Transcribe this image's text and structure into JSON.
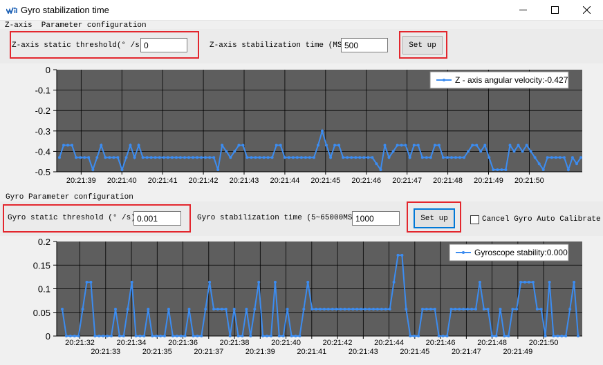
{
  "window": {
    "title": "Gyro stabilization time",
    "app_icon": "wit-logo-icon",
    "controls": [
      "minimize-icon",
      "maximize-icon",
      "close-icon"
    ]
  },
  "z_axis": {
    "section_label": "Z-axis  Parameter configuration",
    "threshold_label": "Z-axis static threshold(° /s):",
    "threshold_value": "0",
    "time_label": "Z-axis stabilization time (MS):",
    "time_value": "500",
    "setup_label": "Set up"
  },
  "gyro": {
    "section_label": "Gyro Parameter configuration",
    "threshold_label": "Gyro static threshold (° /s):",
    "threshold_value": "0.001",
    "time_label": "Gyro stabilization time (5~65000MS):",
    "time_value": "1000",
    "setup_label": "Set up",
    "cancel_calibrate_label": "Cancel Gyro Auto Calibrate",
    "cancel_calibrate_checked": false
  },
  "chart_data": [
    {
      "type": "line",
      "legend": "Z - axis angular velocity:-0.427",
      "legend_position": "top-right",
      "series_color": "#3c8cf0",
      "plot_bg": "#5e5e5e",
      "grid": true,
      "ylim": [
        -0.5,
        0
      ],
      "yticks": [
        "0",
        "-0.1",
        "-0.2",
        "-0.3",
        "-0.4",
        "-0.5"
      ],
      "xticks": [
        "20:21:39",
        "20:21:40",
        "20:21:41",
        "20:21:42",
        "20:21:43",
        "20:21:44",
        "20:21:45",
        "20:21:46",
        "20:21:47",
        "20:21:48",
        "20:21:49",
        "20:21:50"
      ],
      "x_range": [
        38.4,
        51.3
      ],
      "x_first_tick": 39,
      "values": [
        -0.43,
        -0.37,
        -0.37,
        -0.37,
        -0.43,
        -0.43,
        -0.43,
        -0.43,
        -0.49,
        -0.43,
        -0.37,
        -0.43,
        -0.43,
        -0.43,
        -0.43,
        -0.49,
        -0.43,
        -0.37,
        -0.43,
        -0.37,
        -0.43,
        -0.43,
        -0.43,
        -0.43,
        -0.43,
        -0.43,
        -0.43,
        -0.43,
        -0.43,
        -0.43,
        -0.43,
        -0.43,
        -0.43,
        -0.43,
        -0.43,
        -0.43,
        -0.43,
        -0.43,
        -0.49,
        -0.37,
        -0.4,
        -0.43,
        -0.4,
        -0.37,
        -0.37,
        -0.43,
        -0.43,
        -0.43,
        -0.43,
        -0.43,
        -0.43,
        -0.43,
        -0.37,
        -0.37,
        -0.43,
        -0.43,
        -0.43,
        -0.43,
        -0.43,
        -0.43,
        -0.43,
        -0.43,
        -0.37,
        -0.3,
        -0.37,
        -0.43,
        -0.37,
        -0.37,
        -0.43,
        -0.43,
        -0.43,
        -0.43,
        -0.43,
        -0.43,
        -0.43,
        -0.43,
        -0.46,
        -0.49,
        -0.37,
        -0.43,
        -0.4,
        -0.37,
        -0.37,
        -0.37,
        -0.43,
        -0.37,
        -0.37,
        -0.43,
        -0.43,
        -0.43,
        -0.37,
        -0.37,
        -0.43,
        -0.43,
        -0.43,
        -0.43,
        -0.43,
        -0.43,
        -0.4,
        -0.37,
        -0.37,
        -0.4,
        -0.37,
        -0.43,
        -0.49,
        -0.49,
        -0.49,
        -0.49,
        -0.37,
        -0.4,
        -0.37,
        -0.4,
        -0.37,
        -0.4,
        -0.43,
        -0.46,
        -0.49,
        -0.43,
        -0.43,
        -0.43,
        -0.43,
        -0.43,
        -0.49,
        -0.43,
        -0.46,
        -0.43
      ]
    },
    {
      "type": "line",
      "legend": "Gyroscope stability:0.000",
      "legend_position": "top-right",
      "series_color": "#3c8cf0",
      "plot_bg": "#5e5e5e",
      "grid": true,
      "ylim": [
        0,
        0.2
      ],
      "yticks": [
        "0.2",
        "0.15",
        "0.1",
        "0.05",
        "0"
      ],
      "xticks": [
        "20:21:32",
        "20:21:33",
        "20:21:34",
        "20:21:35",
        "20:21:36",
        "20:21:37",
        "20:21:38",
        "20:21:39",
        "20:21:40",
        "20:21:41",
        "20:21:42",
        "20:21:43",
        "20:21:44",
        "20:21:45",
        "20:21:46",
        "20:21:47",
        "20:21:48",
        "20:21:49",
        "20:21:50"
      ],
      "x_range": [
        31.1,
        51.5
      ],
      "x_first_tick": 32,
      "values": [
        0.057,
        0.0,
        0.0,
        0.0,
        0.0,
        0.057,
        0.114,
        0.114,
        0.0,
        0.0,
        0.0,
        0.0,
        0.0,
        0.057,
        0.0,
        0.0,
        0.057,
        0.114,
        0.0,
        0.0,
        0.0,
        0.057,
        0.0,
        0.0,
        0.0,
        0.0,
        0.057,
        0.0,
        0.0,
        0.0,
        0.0,
        0.057,
        0.0,
        0.0,
        0.0,
        0.057,
        0.114,
        0.057,
        0.057,
        0.057,
        0.057,
        0.0,
        0.057,
        0.0,
        0.0,
        0.057,
        0.0,
        0.057,
        0.114,
        0.0,
        0.0,
        0.0,
        0.114,
        0.0,
        0.0,
        0.057,
        0.0,
        0.0,
        0.0,
        0.057,
        0.114,
        0.057,
        0.057,
        0.057,
        0.057,
        0.057,
        0.057,
        0.057,
        0.057,
        0.057,
        0.057,
        0.057,
        0.057,
        0.057,
        0.057,
        0.057,
        0.057,
        0.057,
        0.057,
        0.057,
        0.057,
        0.114,
        0.171,
        0.171,
        0.057,
        0.0,
        0.0,
        0.0,
        0.057,
        0.057,
        0.057,
        0.057,
        0.0,
        0.0,
        0.0,
        0.057,
        0.057,
        0.057,
        0.057,
        0.057,
        0.057,
        0.057,
        0.114,
        0.057,
        0.057,
        0.0,
        0.0,
        0.057,
        0.0,
        0.0,
        0.057,
        0.057,
        0.114,
        0.114,
        0.114,
        0.114,
        0.057,
        0.057,
        0.0,
        0.114,
        0.0,
        0.0,
        0.0,
        0.0,
        0.057,
        0.114,
        0.0
      ]
    }
  ]
}
